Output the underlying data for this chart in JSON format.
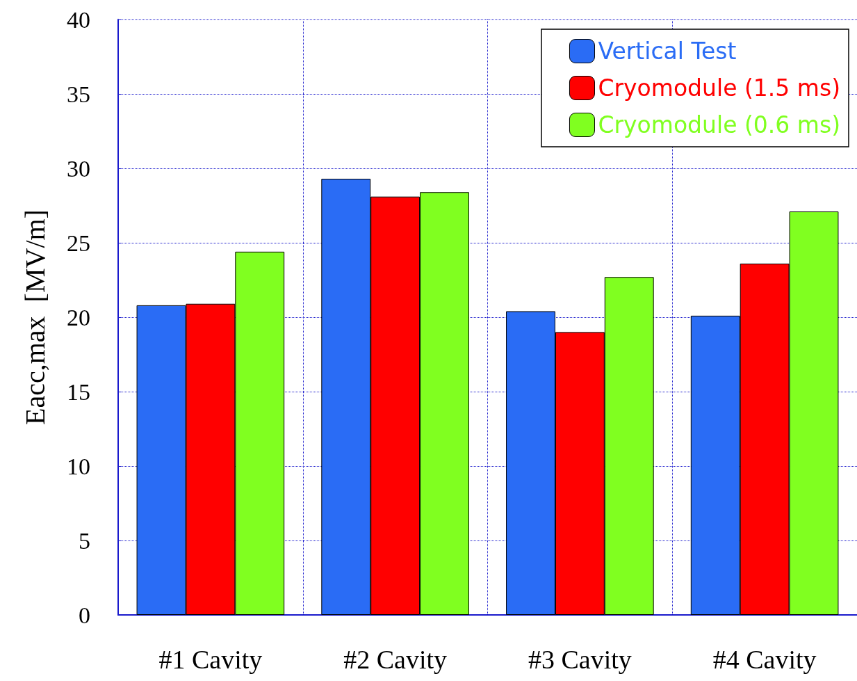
{
  "chart_data": {
    "type": "bar",
    "ylabel": "Eacc,max  [MV/m]",
    "categories": [
      "#1 Cavity",
      "#2 Cavity",
      "#3 Cavity",
      "#4 Cavity"
    ],
    "series": [
      {
        "name": "Vertical Test",
        "color": "#2a6cf5",
        "values": [
          20.8,
          29.3,
          20.4,
          20.1
        ]
      },
      {
        "name": "Cryomodule (1.5 ms)",
        "color": "#ff0000",
        "values": [
          20.9,
          28.1,
          19.0,
          23.6
        ]
      },
      {
        "name": "Cryomodule (0.6 ms)",
        "color": "#80ff20",
        "values": [
          24.4,
          28.4,
          22.7,
          27.1
        ]
      }
    ],
    "ylim": [
      0,
      40
    ],
    "yticks": [
      0,
      5,
      10,
      15,
      20,
      25,
      30,
      35,
      40
    ],
    "grid": true,
    "legend": "top right"
  }
}
